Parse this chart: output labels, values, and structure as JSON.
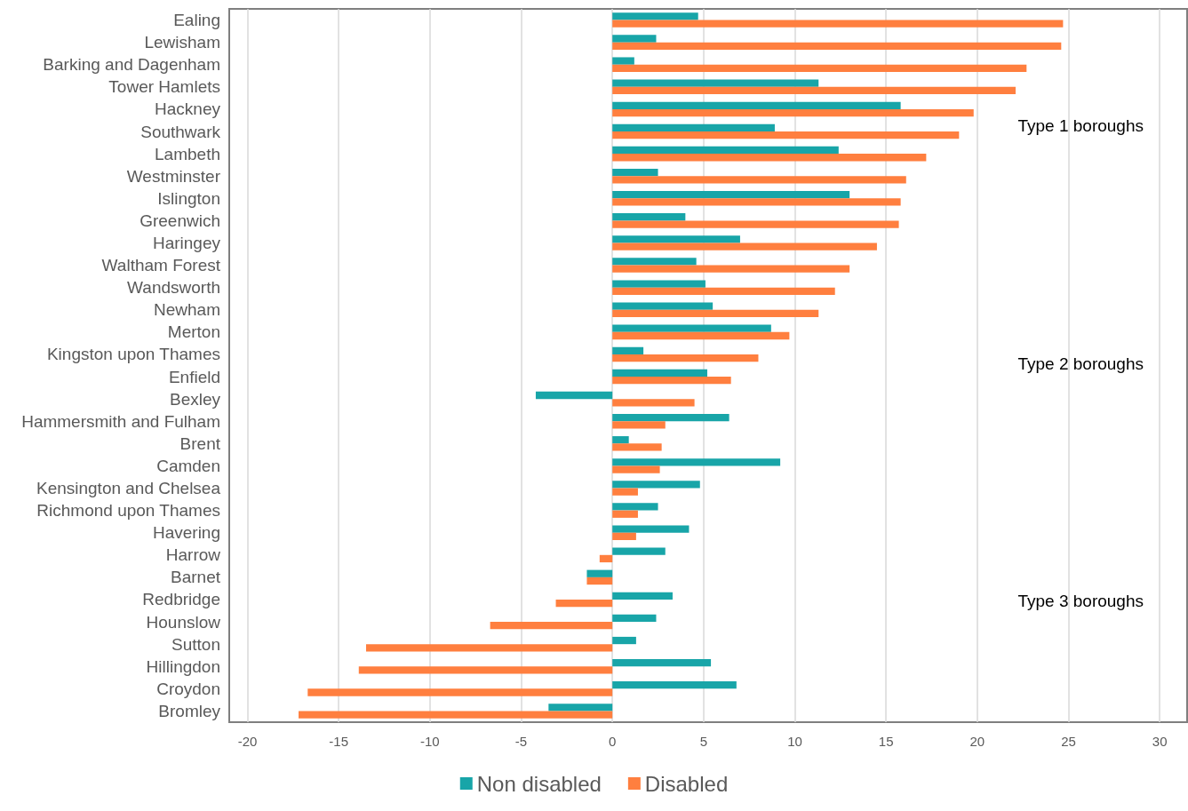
{
  "chart_data": {
    "type": "bar",
    "orientation": "horizontal",
    "categories": [
      "Ealing",
      "Lewisham",
      "Barking and Dagenham",
      "Tower Hamlets",
      "Hackney",
      "Southwark",
      "Lambeth",
      "Westminster",
      "Islington",
      "Greenwich",
      "Haringey",
      "Waltham Forest",
      "Wandsworth",
      "Newham",
      "Merton",
      "Kingston upon Thames",
      "Enfield",
      "Bexley",
      "Hammersmith and Fulham",
      "Brent",
      "Camden",
      "Kensington and Chelsea",
      "Richmond upon Thames",
      "Havering",
      "Harrow",
      "Barnet",
      "Redbridge",
      "Hounslow",
      "Sutton",
      "Hillingdon",
      "Croydon",
      "Bromley"
    ],
    "series": [
      {
        "name": "Non disabled",
        "color": "#18a5a8",
        "values": [
          4.7,
          2.4,
          1.2,
          11.3,
          15.8,
          8.9,
          12.4,
          2.5,
          13.0,
          4.0,
          7.0,
          4.6,
          5.1,
          5.5,
          8.7,
          1.7,
          5.2,
          -4.2,
          6.4,
          0.9,
          9.2,
          4.8,
          2.5,
          4.2,
          2.9,
          -1.4,
          3.3,
          2.4,
          1.3,
          5.4,
          6.8,
          -3.5
        ]
      },
      {
        "name": "Disabled",
        "color": "#ff7f3f",
        "values": [
          24.7,
          24.6,
          22.7,
          22.1,
          19.8,
          19.0,
          17.2,
          16.1,
          15.8,
          15.7,
          14.5,
          13.0,
          12.2,
          11.3,
          9.7,
          8.0,
          6.5,
          4.5,
          2.9,
          2.7,
          2.6,
          1.4,
          1.4,
          1.3,
          -0.7,
          -1.4,
          -3.1,
          -6.7,
          -13.5,
          -13.9,
          -16.7,
          -17.2
        ]
      }
    ],
    "xlim": [
      -21,
      31.5
    ],
    "xticks": [
      -20,
      -15,
      -10,
      -5,
      0,
      5,
      10,
      15,
      20,
      25,
      30
    ],
    "annotations": [
      "Type 1 boroughs",
      "Type 2 boroughs",
      "Type 3 boroughs"
    ],
    "grid": "x",
    "legend": "bottom"
  }
}
